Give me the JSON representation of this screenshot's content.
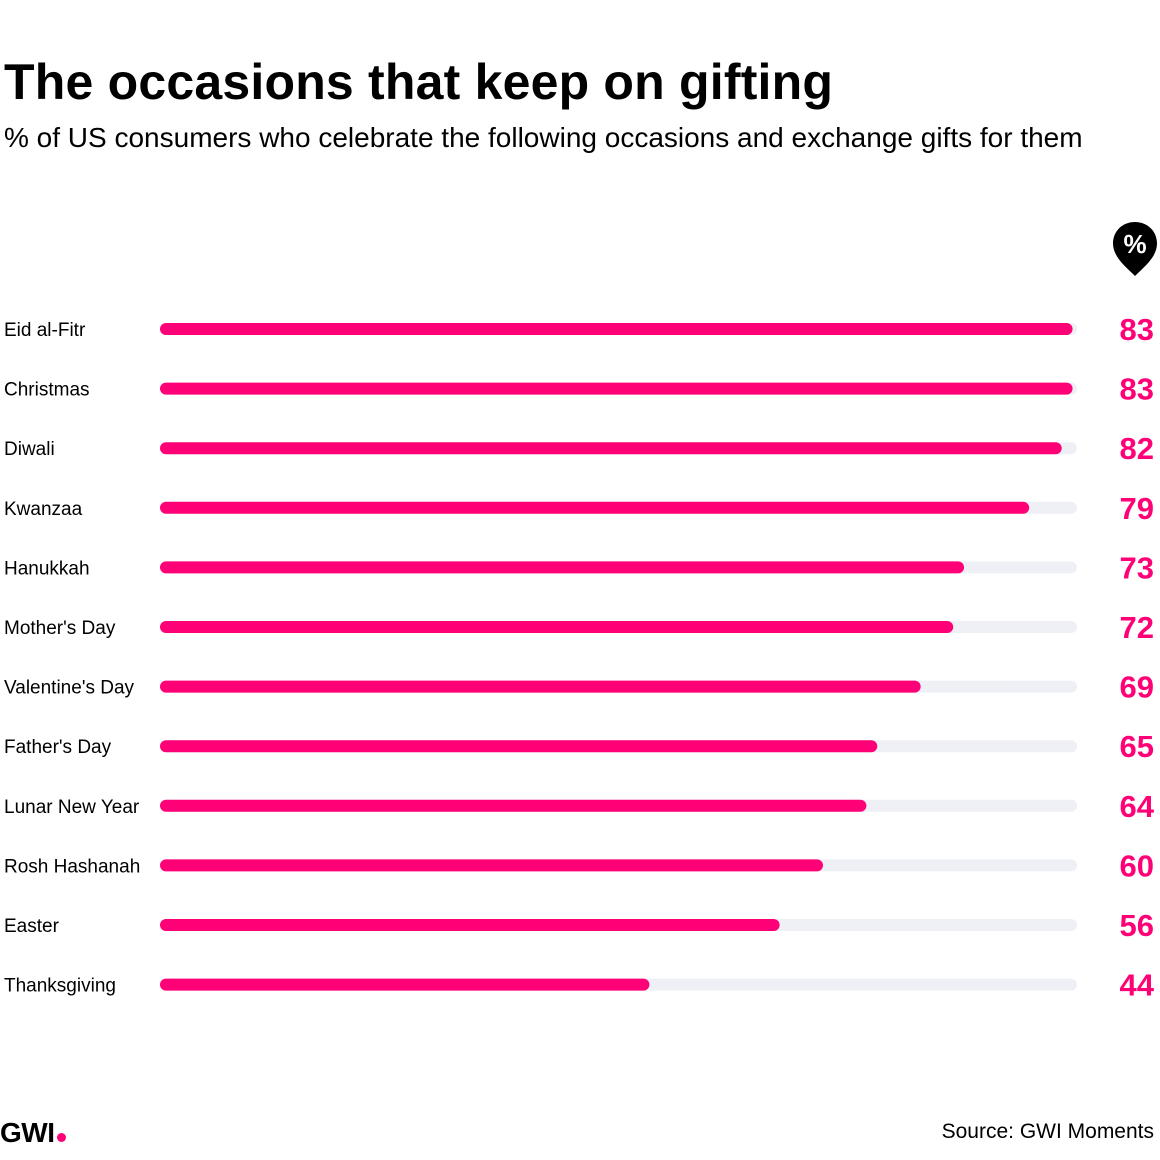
{
  "header": {
    "title": "The occasions that keep on gifting",
    "subtitle": "% of US consumers who celebrate the following occasions and exchange gifts for them"
  },
  "unit_marker": {
    "label": "%",
    "icon": "percent-pin-icon"
  },
  "chart_data": {
    "type": "bar",
    "orientation": "horizontal",
    "title": "The occasions that keep on gifting",
    "subtitle": "% of US consumers who celebrate the following occasions and exchange gifts for them",
    "categories": [
      "Eid al-Fitr",
      "Christmas",
      "Diwali",
      "Kwanzaa",
      "Hanukkah",
      "Mother's Day",
      "Valentine's Day",
      "Father's Day",
      "Lunar New Year",
      "Rosh Hashanah",
      "Easter",
      "Thanksgiving"
    ],
    "values": [
      83,
      83,
      82,
      79,
      73,
      72,
      69,
      65,
      64,
      60,
      56,
      44
    ],
    "xlim": [
      0,
      100
    ],
    "grid": false,
    "legend": "none",
    "colors": {
      "bar": "#ff0077",
      "track": "#eef0f6",
      "value_label": "#ff0077"
    }
  },
  "footer": {
    "brand": "GWI",
    "brand_dot_color": "#ff0077",
    "source": "Source: GWI Moments"
  }
}
